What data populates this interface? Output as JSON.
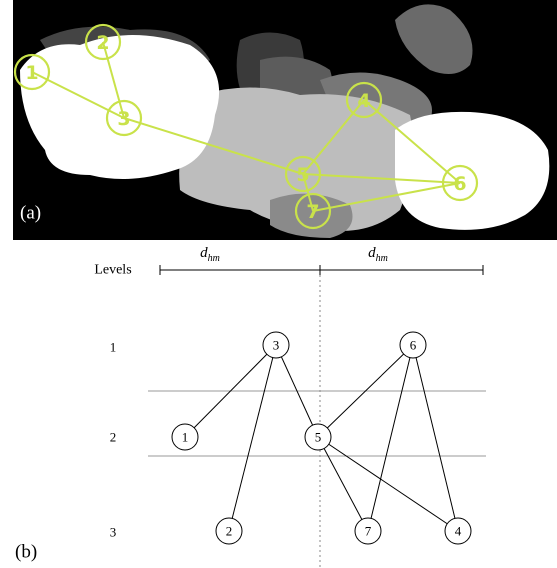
{
  "panel_a": {
    "label": "(a)",
    "nodes": [
      "1",
      "2",
      "3",
      "4",
      "5",
      "6",
      "7"
    ]
  },
  "panel_b": {
    "label": "(b)",
    "levels_header": "Levels",
    "levels": [
      "1",
      "2",
      "3"
    ],
    "distance": {
      "base": "d",
      "sub": "hm"
    },
    "nodes": [
      "1",
      "2",
      "3",
      "4",
      "5",
      "6",
      "7"
    ]
  }
}
